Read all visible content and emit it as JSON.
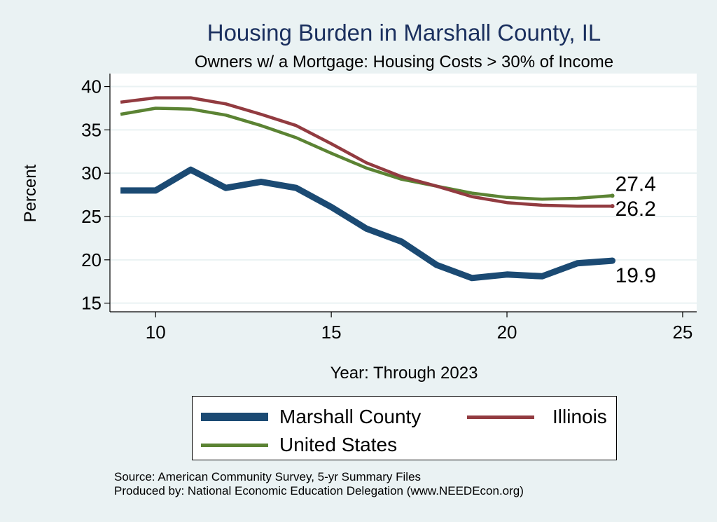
{
  "chart_data": {
    "type": "line",
    "title": "Housing Burden in Marshall County, IL",
    "subtitle": "Owners w/ a Mortgage: Housing Costs > 30% of Income",
    "xlabel": "Year: Through 2023",
    "ylabel": "Percent",
    "xlim": [
      8.7,
      25.4
    ],
    "ylim": [
      14,
      41.5
    ],
    "xticks": [
      10,
      15,
      20,
      25
    ],
    "yticks": [
      15,
      20,
      25,
      30,
      35,
      40
    ],
    "grid": true,
    "legend_position": "bottom",
    "x": [
      9,
      10,
      11,
      12,
      13,
      14,
      15,
      16,
      17,
      18,
      19,
      20,
      21,
      22,
      23
    ],
    "series": [
      {
        "name": "Marshall County",
        "color": "#1b4a73",
        "values": [
          28.0,
          28.0,
          30.4,
          28.3,
          29.0,
          28.3,
          26.1,
          23.6,
          22.1,
          19.4,
          17.9,
          18.3,
          18.1,
          19.6,
          19.9
        ],
        "end_label": "19.9"
      },
      {
        "name": "Illinois",
        "color": "#923b40",
        "values": [
          38.2,
          38.7,
          38.7,
          38.0,
          36.8,
          35.5,
          33.4,
          31.2,
          29.6,
          28.5,
          27.3,
          26.6,
          26.3,
          26.2,
          26.2
        ],
        "end_label": "26.2"
      },
      {
        "name": "United States",
        "color": "#5b8333",
        "values": [
          36.8,
          37.5,
          37.4,
          36.7,
          35.5,
          34.1,
          32.3,
          30.6,
          29.3,
          28.5,
          27.7,
          27.2,
          27.0,
          27.1,
          27.4
        ],
        "end_label": "27.4"
      }
    ]
  },
  "legend": {
    "items": [
      "Marshall County",
      "Illinois",
      "United States"
    ]
  },
  "source": {
    "line1": "Source: American Community Survey, 5-yr Summary Files",
    "line2": "Produced by: National Economic Education Delegation (www.NEEDEcon.org)"
  }
}
